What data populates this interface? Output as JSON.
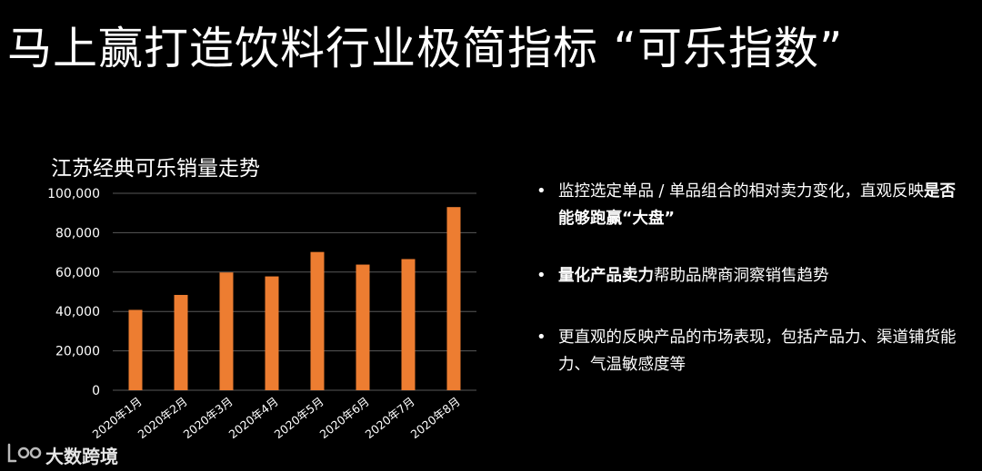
{
  "slide": {
    "title": "马上赢打造饮料行业极简指标 “可乐指数”"
  },
  "bullets": [
    {
      "pre": "监控选定单品 / 单品组合的相对卖力变化，直观反映",
      "bold": "是否能够跑赢“大盘”",
      "post": ""
    },
    {
      "pre": "",
      "bold": "量化产品卖力",
      "post": "帮助品牌商洞察销售趋势"
    },
    {
      "pre": "更直观的反映产品的市场表现，包括产品力、渠道铺货能力、气温敏感度等",
      "bold": "",
      "post": ""
    }
  ],
  "watermark": {
    "logo_text": "大数跨境"
  },
  "colors": {
    "background": "#000000",
    "bar": "#ED7D31",
    "grid": "#595959",
    "text": "#FFFFFF"
  },
  "chart_data": {
    "type": "bar",
    "title": "江苏经典可乐销量走势",
    "xlabel": "",
    "ylabel": "",
    "categories": [
      "2020年1月",
      "2020年2月",
      "2020年3月",
      "2020年4月",
      "2020年5月",
      "2020年6月",
      "2020年7月",
      "2020年8月"
    ],
    "values": [
      40800,
      48400,
      59800,
      57800,
      70200,
      63800,
      66600,
      93000
    ],
    "ylim": [
      0,
      100000
    ],
    "yticks": [
      0,
      20000,
      40000,
      60000,
      80000,
      100000
    ],
    "ytick_labels": [
      "0",
      "20,000",
      "40,000",
      "60,000",
      "80,000",
      "100,000"
    ],
    "grid": true,
    "legend": "none"
  }
}
